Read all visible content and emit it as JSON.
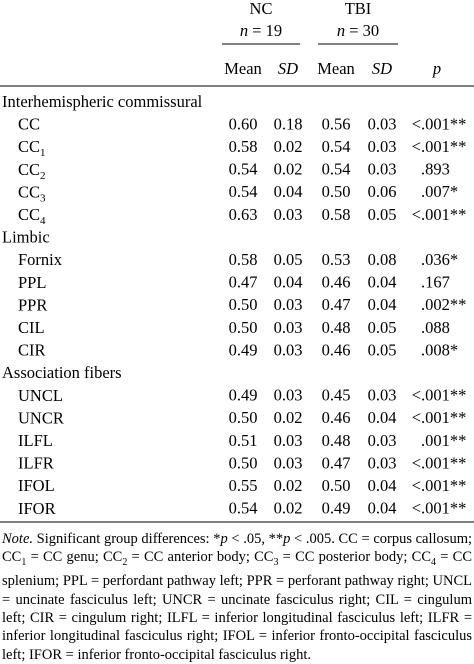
{
  "header": {
    "groups": [
      {
        "name": "NC",
        "n_label": "n",
        "n_value": "= 19"
      },
      {
        "name": "TBI",
        "n_label": "n",
        "n_value": "= 30"
      }
    ],
    "columns": [
      "Mean",
      "SD",
      "Mean",
      "SD",
      "p"
    ]
  },
  "sections": [
    {
      "title": "Interhemispheric commissural",
      "rows": [
        {
          "label": "CC",
          "values": [
            "0.60",
            "0.18",
            "0.56",
            "0.03",
            "<.001**"
          ]
        },
        {
          "label": "CC",
          "sub": "1",
          "values": [
            "0.58",
            "0.02",
            "0.54",
            "0.03",
            "<.001**"
          ]
        },
        {
          "label": "CC",
          "sub": "2",
          "values": [
            "0.54",
            "0.02",
            "0.54",
            "0.03",
            ".893"
          ]
        },
        {
          "label": "CC",
          "sub": "3",
          "values": [
            "0.54",
            "0.04",
            "0.50",
            "0.06",
            ".007*"
          ]
        },
        {
          "label": "CC",
          "sub": "4",
          "values": [
            "0.63",
            "0.03",
            "0.58",
            "0.05",
            "<.001**"
          ]
        }
      ]
    },
    {
      "title": "Limbic",
      "rows": [
        {
          "label": "Fornix",
          "values": [
            "0.58",
            "0.05",
            "0.53",
            "0.08",
            ".036*"
          ]
        },
        {
          "label": "PPL",
          "values": [
            "0.47",
            "0.04",
            "0.46",
            "0.04",
            ".167"
          ]
        },
        {
          "label": "PPR",
          "values": [
            "0.50",
            "0.03",
            "0.47",
            "0.04",
            ".002**"
          ]
        },
        {
          "label": "CIL",
          "values": [
            "0.50",
            "0.03",
            "0.48",
            "0.05",
            ".088"
          ]
        },
        {
          "label": "CIR",
          "values": [
            "0.49",
            "0.03",
            "0.46",
            "0.05",
            ".008*"
          ]
        }
      ]
    },
    {
      "title": "Association fibers",
      "rows": [
        {
          "label": "UNCL",
          "values": [
            "0.49",
            "0.03",
            "0.45",
            "0.03",
            "<.001**"
          ]
        },
        {
          "label": "UNCR",
          "values": [
            "0.50",
            "0.02",
            "0.46",
            "0.04",
            "<.001**"
          ]
        },
        {
          "label": "ILFL",
          "values": [
            "0.51",
            "0.03",
            "0.48",
            "0.03",
            ".001**"
          ]
        },
        {
          "label": "ILFR",
          "values": [
            "0.50",
            "0.03",
            "0.47",
            "0.03",
            "<.001**"
          ]
        },
        {
          "label": "IFOL",
          "values": [
            "0.55",
            "0.02",
            "0.50",
            "0.04",
            "<.001**"
          ]
        },
        {
          "label": "IFOR",
          "values": [
            "0.54",
            "0.02",
            "0.49",
            "0.04",
            "<.001**"
          ]
        }
      ]
    }
  ],
  "note": [
    {
      "text": "Note.",
      "style": "i"
    },
    {
      "text": " Significant group differences: *"
    },
    {
      "text": "p",
      "style": "i"
    },
    {
      "text": " < .05, **"
    },
    {
      "text": "p",
      "style": "i"
    },
    {
      "text": " < .005. CC = corpus callosum; CC"
    },
    {
      "text": "1",
      "style": "sub"
    },
    {
      "text": " = CC genu; CC"
    },
    {
      "text": "2",
      "style": "sub"
    },
    {
      "text": " = CC anterior body; CC"
    },
    {
      "text": "3",
      "style": "sub"
    },
    {
      "text": " = CC posterior body; CC"
    },
    {
      "text": "4",
      "style": "sub"
    },
    {
      "text": " = CC splenium; PPL = perfordant pathway left; PPR = perforant pathway right; UNCL = uncinate fasciculus left; UNCR = uncinate fasciculus right; CIL = cingulum left; CIR = cingulum right; ILFL = inferior longitudinal fasciculus left; ILFR = inferior longitudinal fasciculus right; IFOL = inferior fronto-occipital fasciculus left; IFOR = inferior fronto-occipital fasciculus right."
    }
  ]
}
